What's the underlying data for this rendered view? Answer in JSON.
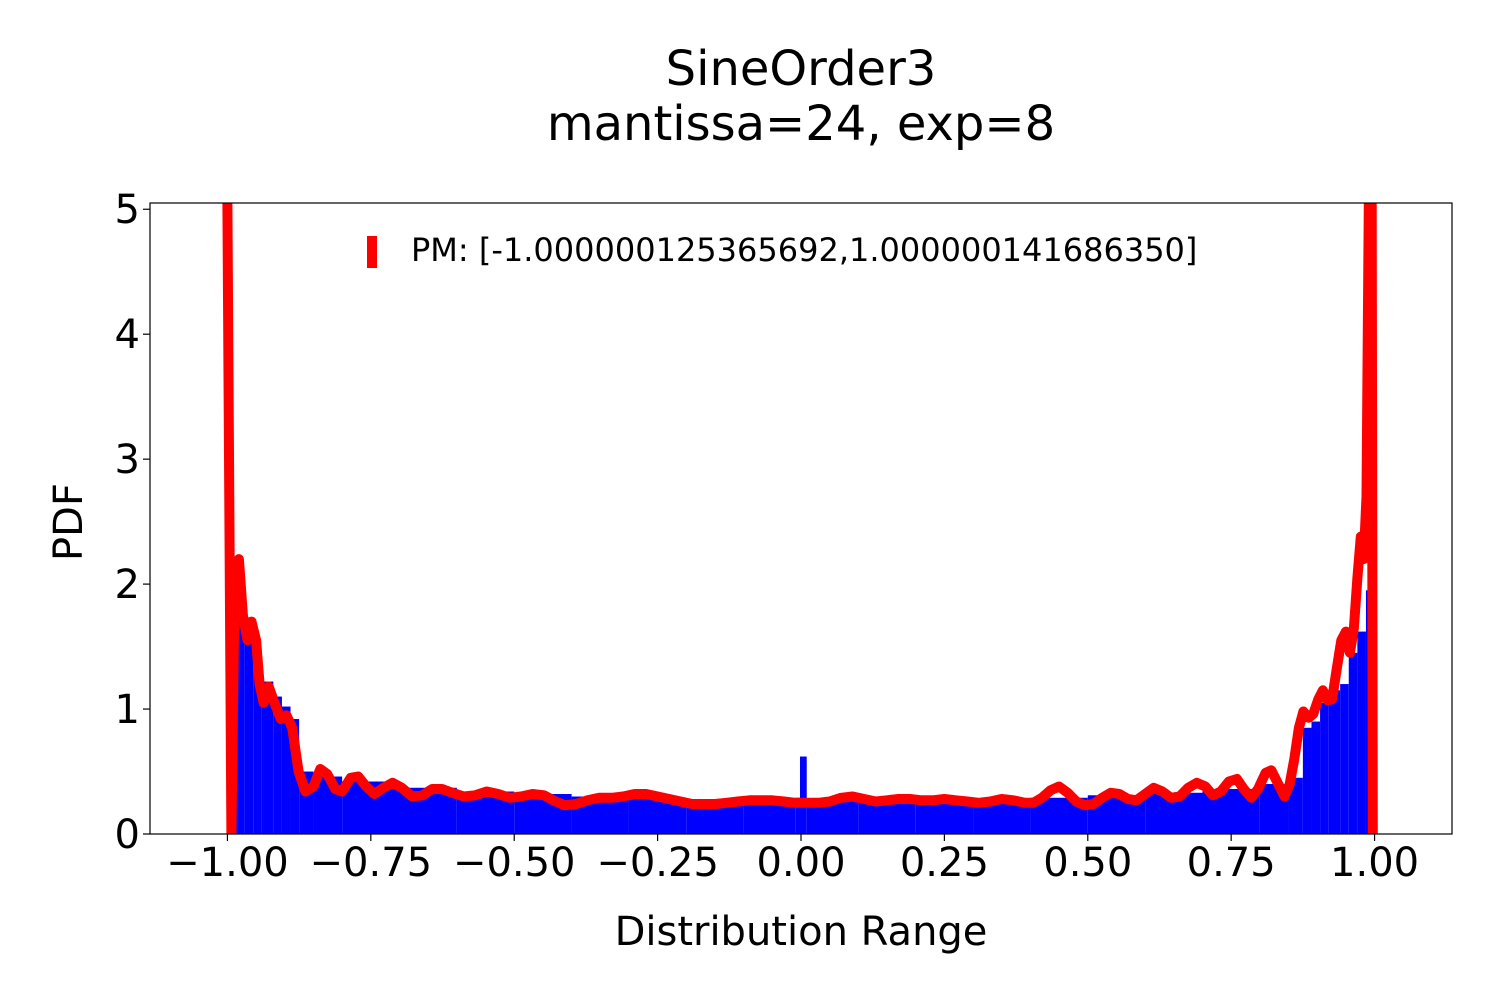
{
  "chart_data": {
    "type": "histogram",
    "title": "SineOrder3",
    "subtitle": "mantissa=24, exp=8",
    "xlabel": "Distribution Range",
    "ylabel": "PDF",
    "xlim": [
      -1.135,
      1.135
    ],
    "ylim": [
      0,
      5.05
    ],
    "xticks": [
      -1.0,
      -0.75,
      -0.5,
      -0.25,
      0.0,
      0.25,
      0.5,
      0.75,
      1.0
    ],
    "xtick_labels": [
      "−1.00",
      "−0.75",
      "−0.50",
      "−0.25",
      "0.00",
      "0.25",
      "0.50",
      "0.75",
      "1.00"
    ],
    "yticks": [
      0,
      1,
      2,
      3,
      4,
      5
    ],
    "ytick_labels": [
      "0",
      "1",
      "2",
      "3",
      "4",
      "5"
    ],
    "grid": false,
    "legend": {
      "position": "top-center",
      "entries": [
        {
          "label": "PM: [-1.000000125365692,1.000000141686350]",
          "color": "#ff0000"
        }
      ]
    },
    "histogram": {
      "color": "#0000ff",
      "range": [
        -0.99,
        0.99
      ],
      "bins": [
        {
          "x": -0.99,
          "y": 1.85
        },
        {
          "x": -0.97,
          "y": 1.6
        },
        {
          "x": -0.955,
          "y": 1.45
        },
        {
          "x": -0.94,
          "y": 1.22
        },
        {
          "x": -0.92,
          "y": 1.1
        },
        {
          "x": -0.905,
          "y": 1.02
        },
        {
          "x": -0.89,
          "y": 0.92
        },
        {
          "x": -0.875,
          "y": 0.5
        },
        {
          "x": -0.85,
          "y": 0.46
        },
        {
          "x": -0.8,
          "y": 0.42
        },
        {
          "x": -0.7,
          "y": 0.37
        },
        {
          "x": -0.6,
          "y": 0.34
        },
        {
          "x": -0.5,
          "y": 0.32
        },
        {
          "x": -0.4,
          "y": 0.3
        },
        {
          "x": -0.3,
          "y": 0.29
        },
        {
          "x": -0.2,
          "y": 0.28
        },
        {
          "x": -0.1,
          "y": 0.27
        },
        {
          "x": -0.01,
          "y": 0.29
        },
        {
          "x": 0.0,
          "y": 0.62
        },
        {
          "x": 0.01,
          "y": 0.28
        },
        {
          "x": 0.1,
          "y": 0.27
        },
        {
          "x": 0.2,
          "y": 0.27
        },
        {
          "x": 0.3,
          "y": 0.28
        },
        {
          "x": 0.4,
          "y": 0.29
        },
        {
          "x": 0.5,
          "y": 0.31
        },
        {
          "x": 0.6,
          "y": 0.33
        },
        {
          "x": 0.7,
          "y": 0.36
        },
        {
          "x": 0.8,
          "y": 0.4
        },
        {
          "x": 0.85,
          "y": 0.45
        },
        {
          "x": 0.875,
          "y": 0.85
        },
        {
          "x": 0.89,
          "y": 0.9
        },
        {
          "x": 0.905,
          "y": 1.05
        },
        {
          "x": 0.92,
          "y": 1.15
        },
        {
          "x": 0.94,
          "y": 1.2
        },
        {
          "x": 0.955,
          "y": 1.45
        },
        {
          "x": 0.97,
          "y": 1.62
        },
        {
          "x": 0.985,
          "y": 1.95
        },
        {
          "x": 0.99,
          "y": 1.95
        }
      ]
    },
    "pm_curve": {
      "color": "#ff0000",
      "points": [
        [
          -1.0,
          5.05
        ],
        [
          -0.993,
          0.0
        ],
        [
          -0.988,
          1.8
        ],
        [
          -0.98,
          2.2
        ],
        [
          -0.973,
          1.75
        ],
        [
          -0.965,
          1.55
        ],
        [
          -0.958,
          1.7
        ],
        [
          -0.95,
          1.55
        ],
        [
          -0.944,
          1.2
        ],
        [
          -0.937,
          1.05
        ],
        [
          -0.928,
          1.18
        ],
        [
          -0.918,
          1.05
        ],
        [
          -0.907,
          0.92
        ],
        [
          -0.897,
          0.95
        ],
        [
          -0.887,
          0.85
        ],
        [
          -0.876,
          0.5
        ],
        [
          -0.864,
          0.34
        ],
        [
          -0.85,
          0.38
        ],
        [
          -0.838,
          0.52
        ],
        [
          -0.826,
          0.48
        ],
        [
          -0.812,
          0.36
        ],
        [
          -0.8,
          0.34
        ],
        [
          -0.785,
          0.45
        ],
        [
          -0.772,
          0.46
        ],
        [
          -0.758,
          0.38
        ],
        [
          -0.744,
          0.32
        ],
        [
          -0.728,
          0.37
        ],
        [
          -0.712,
          0.41
        ],
        [
          -0.696,
          0.37
        ],
        [
          -0.678,
          0.3
        ],
        [
          -0.66,
          0.31
        ],
        [
          -0.643,
          0.36
        ],
        [
          -0.626,
          0.36
        ],
        [
          -0.608,
          0.33
        ],
        [
          -0.588,
          0.3
        ],
        [
          -0.568,
          0.31
        ],
        [
          -0.548,
          0.34
        ],
        [
          -0.528,
          0.32
        ],
        [
          -0.508,
          0.29
        ],
        [
          -0.488,
          0.3
        ],
        [
          -0.468,
          0.32
        ],
        [
          -0.448,
          0.31
        ],
        [
          -0.432,
          0.27
        ],
        [
          -0.412,
          0.23
        ],
        [
          -0.392,
          0.24
        ],
        [
          -0.372,
          0.27
        ],
        [
          -0.352,
          0.29
        ],
        [
          -0.33,
          0.29
        ],
        [
          -0.31,
          0.3
        ],
        [
          -0.29,
          0.32
        ],
        [
          -0.27,
          0.32
        ],
        [
          -0.25,
          0.3
        ],
        [
          -0.23,
          0.28
        ],
        [
          -0.21,
          0.26
        ],
        [
          -0.19,
          0.24
        ],
        [
          -0.17,
          0.24
        ],
        [
          -0.15,
          0.24
        ],
        [
          -0.13,
          0.25
        ],
        [
          -0.11,
          0.26
        ],
        [
          -0.09,
          0.27
        ],
        [
          -0.07,
          0.27
        ],
        [
          -0.05,
          0.27
        ],
        [
          -0.03,
          0.26
        ],
        [
          -0.01,
          0.25
        ],
        [
          0.01,
          0.25
        ],
        [
          0.03,
          0.25
        ],
        [
          0.05,
          0.26
        ],
        [
          0.07,
          0.29
        ],
        [
          0.09,
          0.3
        ],
        [
          0.11,
          0.28
        ],
        [
          0.13,
          0.26
        ],
        [
          0.15,
          0.27
        ],
        [
          0.17,
          0.28
        ],
        [
          0.19,
          0.28
        ],
        [
          0.21,
          0.27
        ],
        [
          0.23,
          0.27
        ],
        [
          0.25,
          0.28
        ],
        [
          0.27,
          0.27
        ],
        [
          0.29,
          0.26
        ],
        [
          0.31,
          0.25
        ],
        [
          0.33,
          0.26
        ],
        [
          0.35,
          0.28
        ],
        [
          0.37,
          0.27
        ],
        [
          0.39,
          0.25
        ],
        [
          0.405,
          0.25
        ],
        [
          0.42,
          0.29
        ],
        [
          0.435,
          0.35
        ],
        [
          0.45,
          0.38
        ],
        [
          0.465,
          0.33
        ],
        [
          0.48,
          0.26
        ],
        [
          0.495,
          0.23
        ],
        [
          0.51,
          0.24
        ],
        [
          0.525,
          0.29
        ],
        [
          0.54,
          0.33
        ],
        [
          0.555,
          0.32
        ],
        [
          0.57,
          0.28
        ],
        [
          0.585,
          0.27
        ],
        [
          0.6,
          0.32
        ],
        [
          0.615,
          0.37
        ],
        [
          0.63,
          0.34
        ],
        [
          0.645,
          0.29
        ],
        [
          0.66,
          0.3
        ],
        [
          0.675,
          0.37
        ],
        [
          0.69,
          0.41
        ],
        [
          0.705,
          0.38
        ],
        [
          0.718,
          0.31
        ],
        [
          0.732,
          0.34
        ],
        [
          0.746,
          0.42
        ],
        [
          0.76,
          0.44
        ],
        [
          0.772,
          0.36
        ],
        [
          0.785,
          0.29
        ],
        [
          0.797,
          0.36
        ],
        [
          0.81,
          0.49
        ],
        [
          0.82,
          0.51
        ],
        [
          0.832,
          0.4
        ],
        [
          0.843,
          0.3
        ],
        [
          0.852,
          0.4
        ],
        [
          0.86,
          0.6
        ],
        [
          0.868,
          0.85
        ],
        [
          0.876,
          0.98
        ],
        [
          0.885,
          0.93
        ],
        [
          0.893,
          0.96
        ],
        [
          0.902,
          1.08
        ],
        [
          0.91,
          1.15
        ],
        [
          0.918,
          1.07
        ],
        [
          0.926,
          1.08
        ],
        [
          0.934,
          1.32
        ],
        [
          0.942,
          1.55
        ],
        [
          0.95,
          1.62
        ],
        [
          0.957,
          1.45
        ],
        [
          0.964,
          1.65
        ],
        [
          0.97,
          2.05
        ],
        [
          0.976,
          2.38
        ],
        [
          0.981,
          2.2
        ],
        [
          0.986,
          2.7
        ],
        [
          0.99,
          5.05
        ],
        [
          0.995,
          5.05
        ],
        [
          0.997,
          0.0
        ]
      ]
    }
  }
}
